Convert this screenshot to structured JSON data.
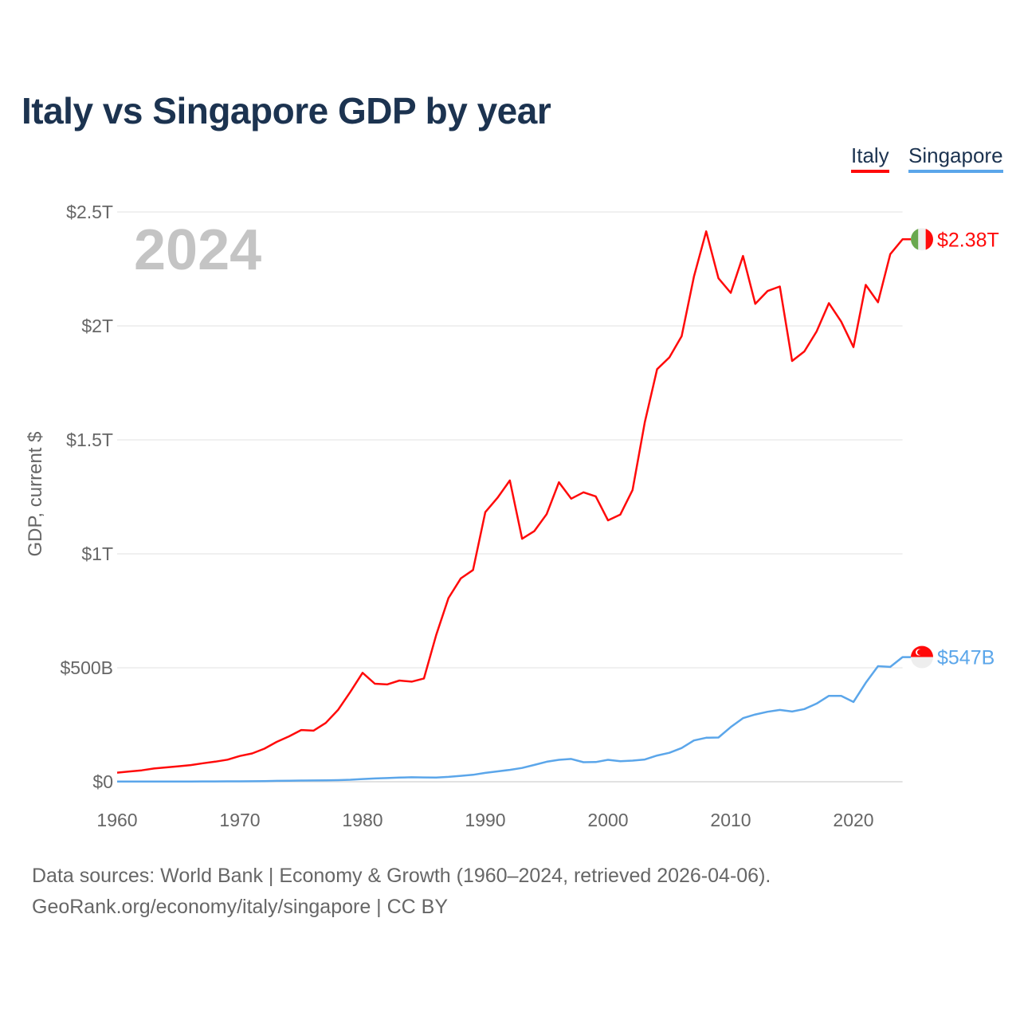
{
  "chart_data": {
    "type": "line",
    "title": "Italy vs Singapore GDP by year",
    "ylabel": "GDP, current $",
    "xlabel": "",
    "xlim": [
      1960,
      2024
    ],
    "ylim": [
      0,
      2500
    ],
    "y_units": "billions USD",
    "grid": true,
    "legend_position": "top-right",
    "year_watermark": "2024",
    "x_ticks": [
      1960,
      1970,
      1980,
      1990,
      2000,
      2010,
      2020
    ],
    "x_tick_labels": [
      "1960",
      "1970",
      "1980",
      "1990",
      "2000",
      "2010",
      "2020"
    ],
    "y_ticks": [
      0,
      500,
      1000,
      1500,
      2000,
      2500
    ],
    "y_tick_labels": [
      "$0",
      "$500B",
      "$1T",
      "$1.5T",
      "$2T",
      "$2.5T"
    ],
    "x": [
      1960,
      1961,
      1962,
      1963,
      1964,
      1965,
      1966,
      1967,
      1968,
      1969,
      1970,
      1971,
      1972,
      1973,
      1974,
      1975,
      1976,
      1977,
      1978,
      1979,
      1980,
      1981,
      1982,
      1983,
      1984,
      1985,
      1986,
      1987,
      1988,
      1989,
      1990,
      1991,
      1992,
      1993,
      1994,
      1995,
      1996,
      1997,
      1998,
      1999,
      2000,
      2001,
      2002,
      2003,
      2004,
      2005,
      2006,
      2007,
      2008,
      2009,
      2010,
      2011,
      2012,
      2013,
      2014,
      2015,
      2016,
      2017,
      2018,
      2019,
      2020,
      2021,
      2022,
      2023,
      2024
    ],
    "series": [
      {
        "name": "Italy",
        "color": "#ff0a0a",
        "end_label": "$2.38T",
        "values": [
          40,
          45,
          50,
          58,
          63,
          68,
          73,
          81,
          88,
          97,
          113,
          124,
          145,
          175,
          199,
          227,
          224,
          258,
          315,
          394,
          478,
          430,
          427,
          444,
          439,
          453,
          644,
          806,
          892,
          929,
          1183,
          1246,
          1322,
          1066,
          1100,
          1174,
          1314,
          1242,
          1270,
          1252,
          1147,
          1172,
          1280,
          1578,
          1810,
          1862,
          1955,
          2216,
          2415,
          2209,
          2145,
          2307,
          2097,
          2153,
          2173,
          1846,
          1888,
          1976,
          2100,
          2019,
          1907,
          2180,
          2104,
          2315,
          2380
        ]
      },
      {
        "name": "Singapore",
        "color": "#5ba6ea",
        "end_label": "$547B",
        "values": [
          0.7,
          0.76,
          0.82,
          0.92,
          0.89,
          0.97,
          1.08,
          1.24,
          1.43,
          1.69,
          1.92,
          2.26,
          2.72,
          3.69,
          4.68,
          5.34,
          5.62,
          6.19,
          7.16,
          8.57,
          11.9,
          14.2,
          16.1,
          18.1,
          19.7,
          19.0,
          18.6,
          21.5,
          25.9,
          30.4,
          38.9,
          45.5,
          52.1,
          60.6,
          73.7,
          87.9,
          96.3,
          100.1,
          85.7,
          86.3,
          96.1,
          89.8,
          92.5,
          97.6,
          115,
          127,
          148,
          181,
          193,
          194,
          240,
          279,
          295,
          307,
          315,
          308,
          319,
          343,
          377,
          377,
          350,
          434,
          507,
          504,
          547
        ]
      }
    ]
  },
  "footer": {
    "sources": "Data sources: World Bank | Economy & Growth (1960–2024, retrieved 2026-04-06).",
    "credit": "GeoRank.org/economy/italy/singapore | CC BY"
  }
}
